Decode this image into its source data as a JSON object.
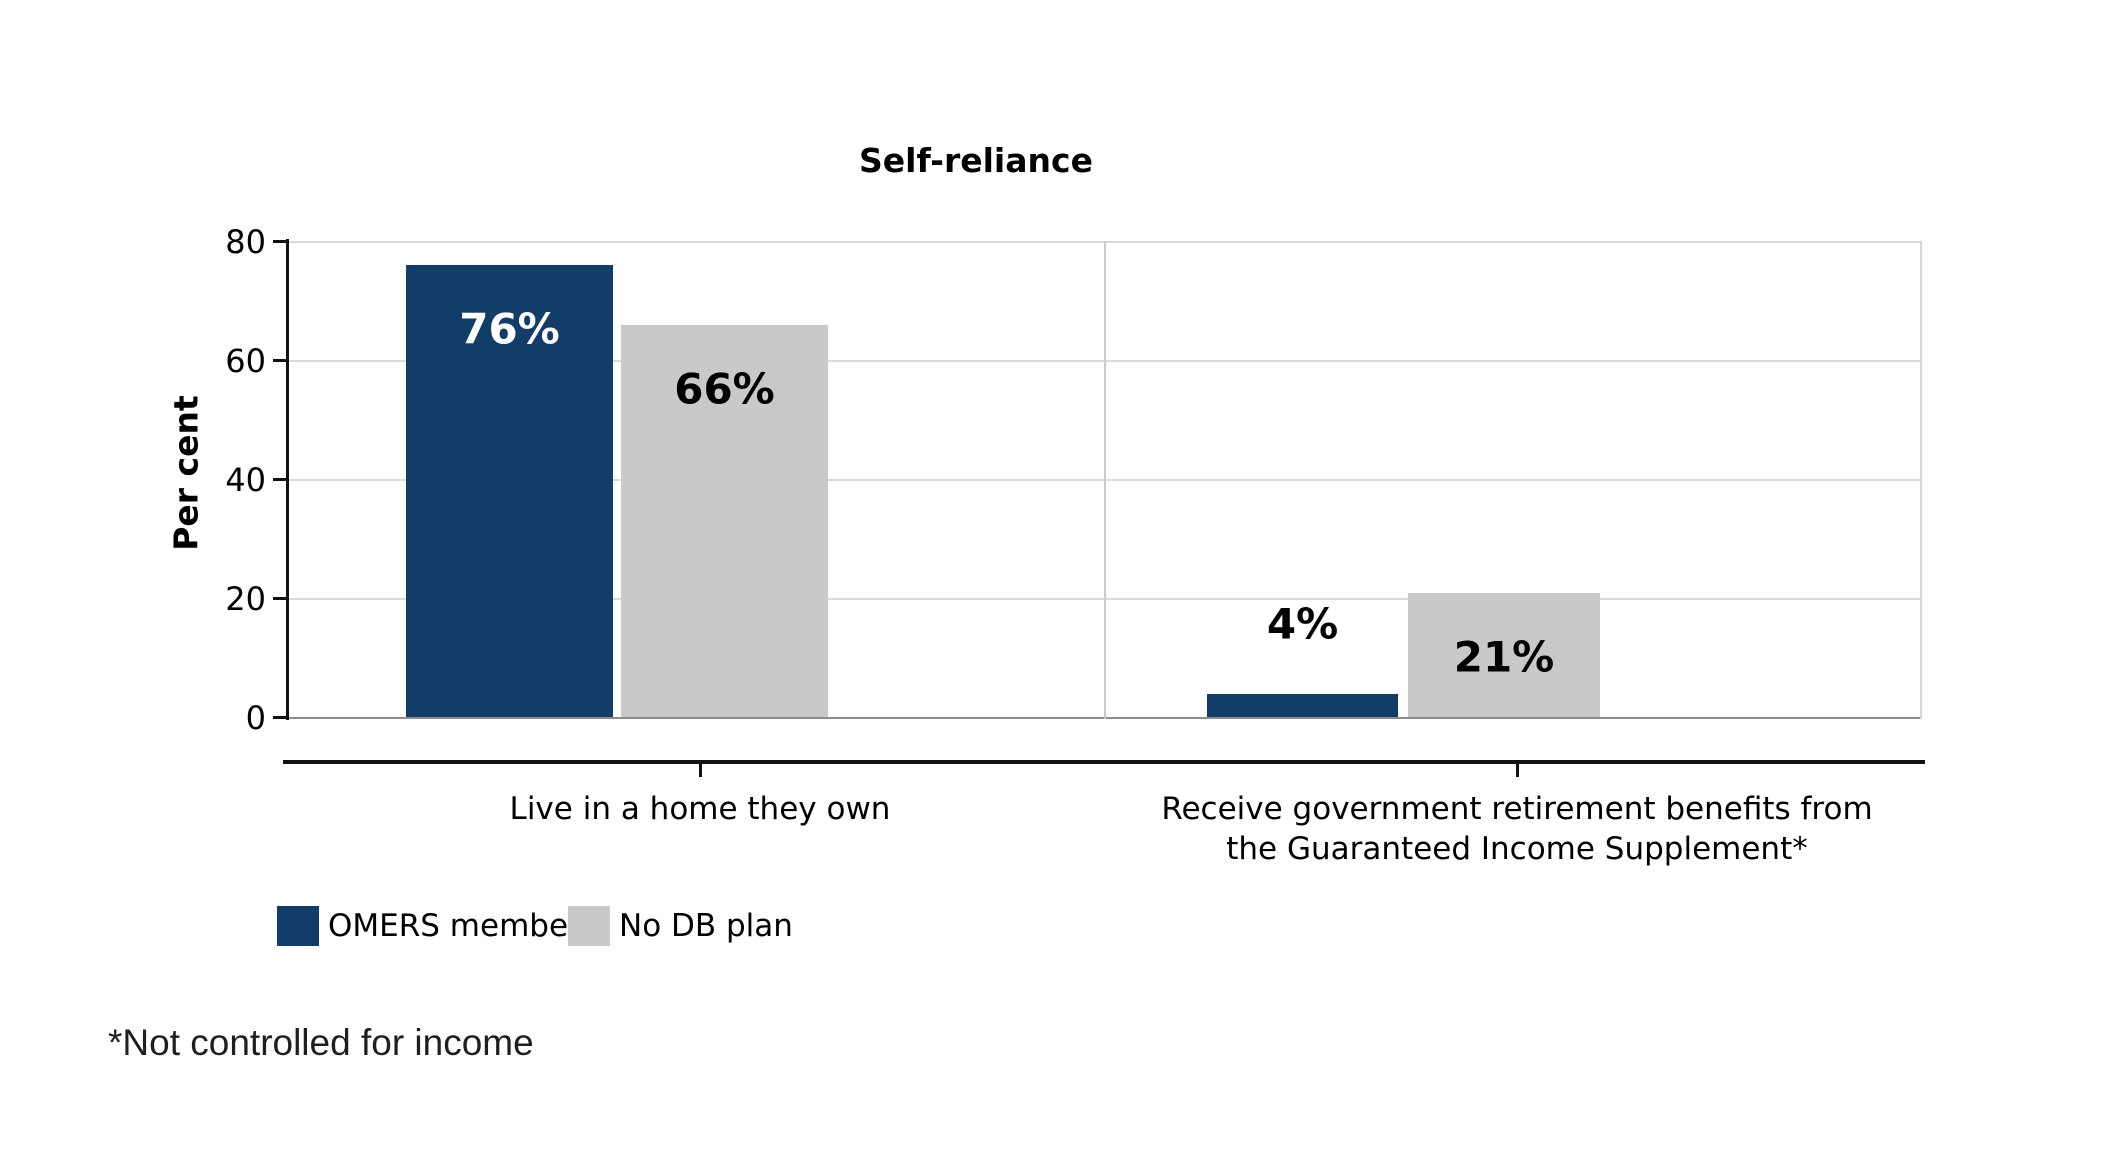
{
  "chart_data": {
    "type": "bar",
    "title": "Self-reliance",
    "ylabel": "Per cent",
    "ylim": [
      0,
      80
    ],
    "yticks": [
      0,
      20,
      40,
      60,
      80
    ],
    "grid": "horizontal gridlines every 20 units; darker baseline at 0",
    "legend_position": "bottom-left below category labels",
    "categories": [
      {
        "label": "Live in a home they own",
        "lines": [
          "Live in a home they own"
        ]
      },
      {
        "label": "Receive government retirement benefits from the Guaranteed Income Supplement*",
        "lines": [
          "Receive government retirement benefits from",
          "the Guaranteed Income Supplement*"
        ]
      }
    ],
    "series": [
      {
        "name": "OMERS members",
        "color": "#123d69",
        "values": [
          76,
          4
        ],
        "value_labels": [
          "76%",
          "4%"
        ],
        "label_color_inside": "#ffffff"
      },
      {
        "name": "No DB plan",
        "color": "#c9c9c9",
        "values": [
          66,
          21
        ],
        "value_labels": [
          "66%",
          "21%"
        ],
        "label_color_inside": "#000000"
      }
    ],
    "footnote": "*Not controlled for income",
    "axis_color": "#111111",
    "gridline_color": "#d9d9d9",
    "zero_line_color": "#8c8c8c"
  }
}
